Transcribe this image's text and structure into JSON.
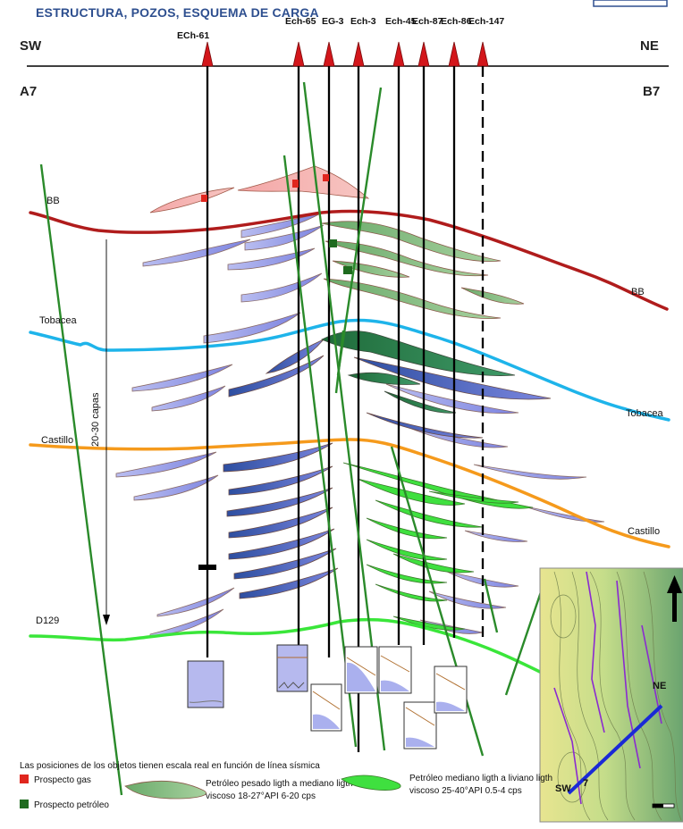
{
  "header": {
    "title": "ESTRUCTURA, POZOS, ESQUEMA DE CARGA",
    "dir_left": "SW",
    "dir_right": "NE",
    "point_left": "A7",
    "point_right": "B7"
  },
  "wells": [
    "ECh-61",
    "Ech-65",
    "EG-3",
    "Ech-3",
    "Ech-45",
    "Ech-87",
    "Ech-86",
    "Ech-147"
  ],
  "horizons": {
    "bb_left": "BB",
    "bb_right": "BB",
    "tobacea_left": "Tobacea",
    "tobacea_right": "Tobacea",
    "castillo_left": "Castillo",
    "castillo_right": "Castillo",
    "d129": "D129"
  },
  "annotations": {
    "layers": "20-30 capas"
  },
  "inset": {
    "sw": "SW",
    "ne": "NE",
    "num": "7"
  },
  "legend": {
    "note": "Las posiciones de los objetos tienen escala real en función de línea sísmica",
    "gas": "Prospecto gas",
    "oil": "Prospecto petróleo",
    "heavy_line1": "Petróleo pesado ligth a mediano ligth",
    "heavy_line2": "viscoso  18-27°API 6-20 cps",
    "light_line1": "Petróleo mediano ligth a liviano ligth",
    "light_line2": "viscoso  25-40°API 0.5-4 cps"
  },
  "colors": {
    "bb": "#b01c1c",
    "tobacea": "#1eb4ea",
    "castillo": "#f59a1c",
    "d129": "#3ae63a",
    "fault": "#2a8a2a",
    "gas": "#e0261e",
    "oil": "#1f6b1f",
    "title": "#2e4f8f"
  }
}
